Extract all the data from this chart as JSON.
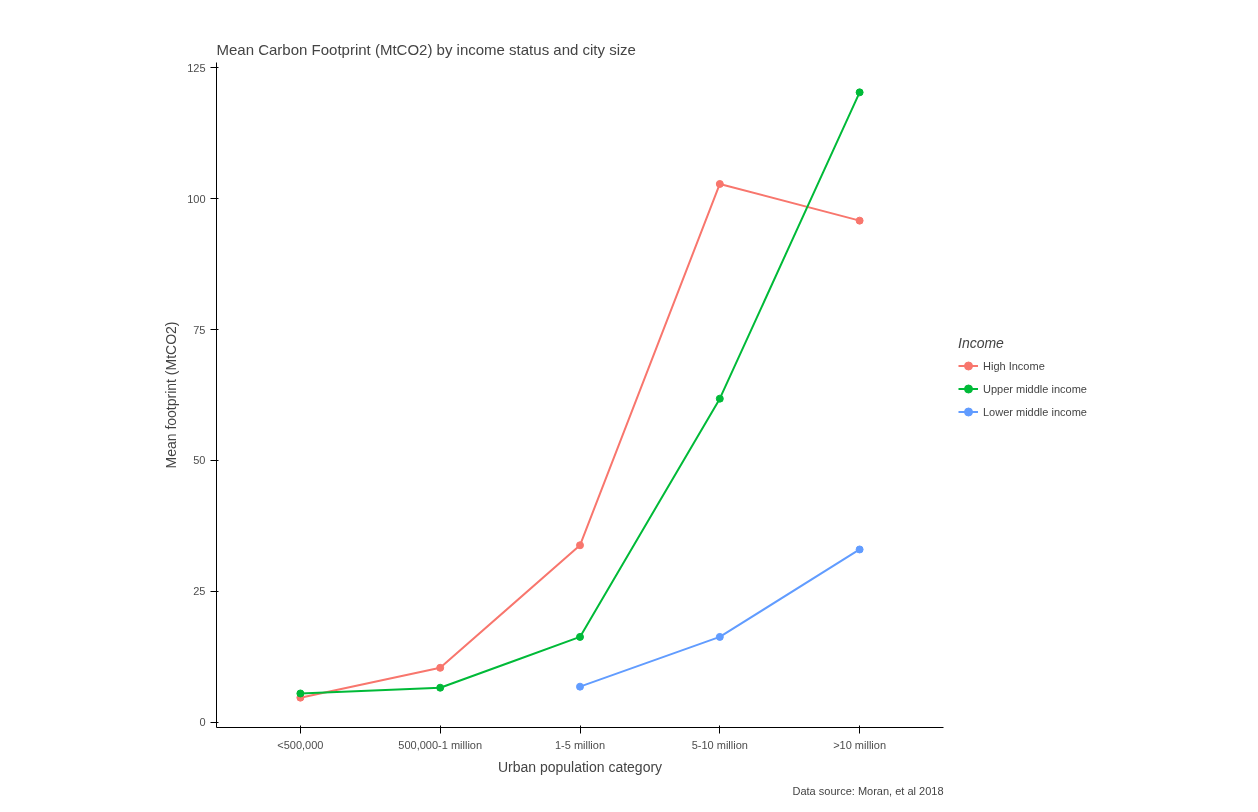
{
  "chart_data": {
    "type": "line",
    "title": "Mean Carbon Footprint (MtCO2) by income status and city size",
    "xlabel": "Urban population category",
    "ylabel": "Mean footprint (MtCO2)",
    "legend_title": "Income",
    "categories": [
      "<500,000",
      "500,000-1 million",
      "1-5 million",
      "5-10 million",
      ">10 million"
    ],
    "series": [
      {
        "name": "High Income",
        "color": "#f8766d",
        "values": [
          4.7,
          10.4,
          33.8,
          102.8,
          95.8
        ]
      },
      {
        "name": "Upper middle income",
        "color": "#00ba38",
        "values": [
          5.5,
          6.6,
          16.3,
          61.8,
          120.3
        ]
      },
      {
        "name": "Lower middle income",
        "color": "#619cff",
        "values": [
          null,
          null,
          6.8,
          16.3,
          33.0
        ]
      }
    ],
    "ylim": [
      -1,
      126
    ],
    "yticks": [
      0,
      25,
      50,
      75,
      100,
      125
    ],
    "grid": false,
    "legend": "right",
    "marker": "circle",
    "line_style": "solid",
    "annotations": [
      "Data source: Moran, et al 2018"
    ]
  }
}
